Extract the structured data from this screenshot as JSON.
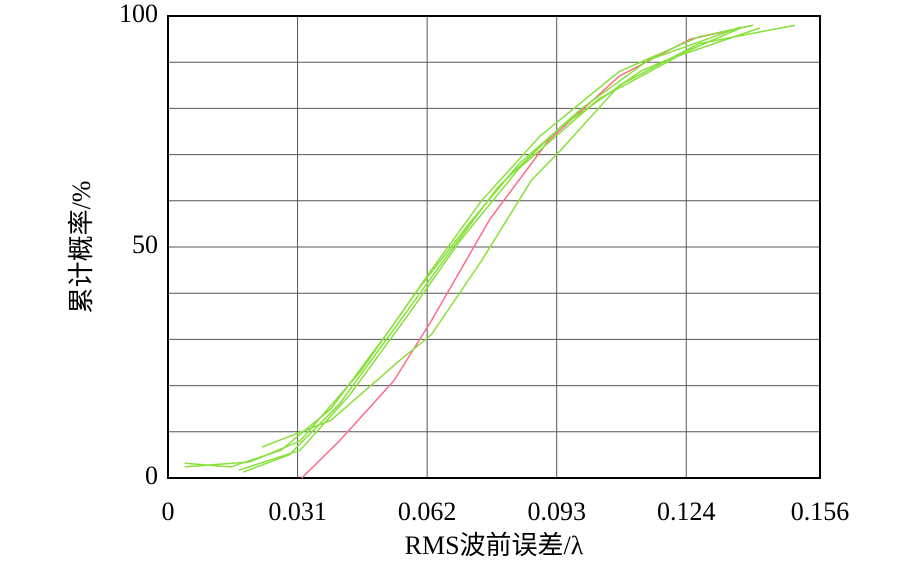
{
  "chart_data": {
    "type": "line",
    "xlabel": "RMS波前误差/λ",
    "ylabel": "累计概率/%",
    "xlim": [
      0,
      0.156
    ],
    "xticks": [
      0,
      0.031,
      0.062,
      0.093,
      0.124,
      0.156
    ],
    "ylim": [
      0,
      100
    ],
    "yticks": [
      0,
      50,
      100
    ],
    "ygrid": [
      10,
      20,
      30,
      40,
      50,
      60,
      70,
      80,
      90
    ],
    "grid": true,
    "series": [
      {
        "color": "#ff6a8a",
        "x": [
          0.032,
          0.041,
          0.054,
          0.063,
          0.077,
          0.091,
          0.108,
          0.125,
          0.14
        ],
        "values": [
          0,
          8,
          21,
          34,
          56,
          73,
          87,
          95,
          98
        ]
      },
      {
        "color": "#88e03a",
        "x": [
          0.0225,
          0.039,
          0.0555,
          0.063,
          0.075,
          0.087,
          0.094,
          0.108,
          0.127,
          0.15
        ],
        "values": [
          6.7,
          12.5,
          25.5,
          31,
          47,
          64.5,
          71,
          85,
          94,
          98
        ]
      },
      {
        "color": "#88e03a",
        "x": [
          0.004,
          0.015,
          0.027,
          0.039,
          0.053,
          0.063,
          0.075,
          0.089,
          0.108,
          0.127,
          0.14
        ],
        "values": [
          3.2,
          2.4,
          6,
          15,
          32,
          45,
          60,
          74,
          88,
          95.5,
          98
        ]
      },
      {
        "color": "#88e03a",
        "x": [
          0.004,
          0.0196,
          0.0316,
          0.046,
          0.06,
          0.072,
          0.084,
          0.099,
          0.115,
          0.137
        ],
        "values": [
          2.4,
          3.5,
          8,
          23,
          41,
          55,
          68,
          80,
          90.5,
          97.6
        ]
      },
      {
        "color": "#88e03a",
        "x": [
          0.018,
          0.029,
          0.041,
          0.0555,
          0.0675,
          0.079,
          0.094,
          0.113,
          0.137
        ],
        "values": [
          1.3,
          5,
          16,
          34,
          49,
          63,
          76,
          88,
          97.4
        ]
      },
      {
        "color": "#88e03a",
        "x": [
          0.017,
          0.0316,
          0.0435,
          0.058,
          0.07,
          0.084,
          0.103,
          0.1225,
          0.1416
        ],
        "values": [
          1.7,
          6,
          18,
          36,
          51.5,
          67,
          82,
          91.5,
          97.4
        ]
      }
    ]
  }
}
